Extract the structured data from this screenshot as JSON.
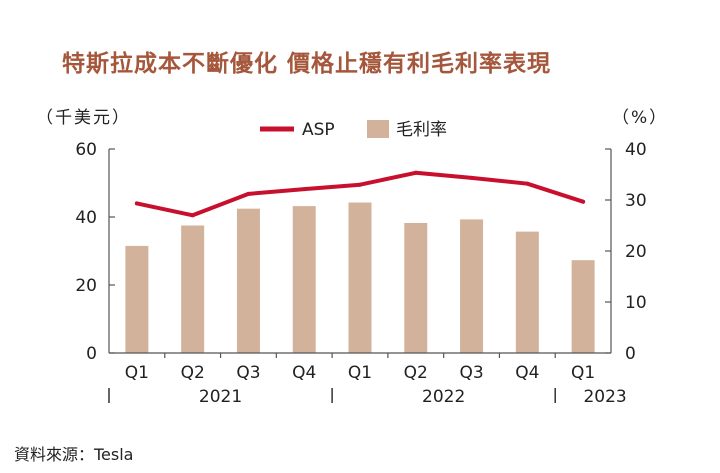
{
  "title": "特斯拉成本不斷優化 價格止穩有利毛利率表現",
  "source": "資料來源：Tesla",
  "chart_data": {
    "type": "bar+line",
    "categories": [
      "Q1",
      "Q2",
      "Q3",
      "Q4",
      "Q1",
      "Q2",
      "Q3",
      "Q4",
      "Q1"
    ],
    "years": [
      {
        "label": "2021",
        "start": 0,
        "end": 3
      },
      {
        "label": "2022",
        "start": 4,
        "end": 7
      },
      {
        "label": "2023",
        "start": 8,
        "end": 8
      }
    ],
    "series": [
      {
        "name": "ASP",
        "type": "line",
        "axis": "left",
        "color": "#c8102e",
        "values": [
          44.0,
          40.5,
          46.8,
          48.2,
          49.5,
          53.0,
          51.5,
          49.8,
          44.5
        ]
      },
      {
        "name": "毛利率",
        "type": "bar",
        "axis": "right",
        "color": "#d2b29b",
        "values": [
          21.0,
          25.0,
          28.3,
          28.8,
          29.5,
          25.5,
          26.2,
          23.8,
          18.2
        ]
      }
    ],
    "left_axis": {
      "label": "（千美元）",
      "min": 0,
      "max": 60,
      "ticks": [
        0,
        20,
        40,
        60
      ]
    },
    "right_axis": {
      "label": "（%）",
      "min": 0,
      "max": 40,
      "ticks": [
        0,
        10,
        20,
        30,
        40
      ]
    },
    "legend": {
      "position": "top-center"
    }
  }
}
